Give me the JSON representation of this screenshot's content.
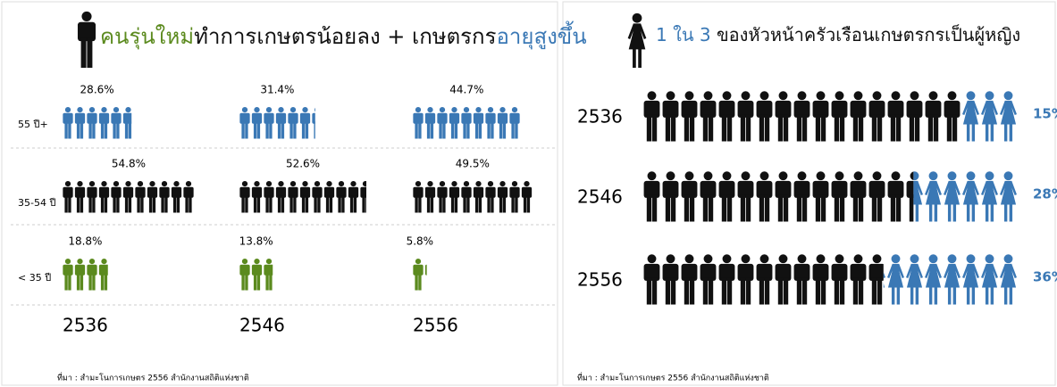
{
  "chart_data": [
    {
      "type": "pictogram",
      "title_parts": [
        {
          "text": "คนรุ่นใหม่",
          "color": "#5b8a1e"
        },
        {
          "text": "ทำการเกษตรน้อยลง + เกษตรกร",
          "color": "#111111"
        },
        {
          "text": "อายุสูงขึ้น",
          "color": "#3a78b5"
        }
      ],
      "categories": [
        "2536",
        "2546",
        "2556"
      ],
      "series": [
        {
          "name": "55 ปี+",
          "color": "#3a78b5",
          "values": [
            28.6,
            31.4,
            44.7
          ],
          "value_labels": [
            "28.6%",
            "31.4%",
            "44.7%"
          ]
        },
        {
          "name": "35-54 ปี",
          "color": "#111111",
          "values": [
            54.8,
            52.6,
            49.5
          ],
          "value_labels": [
            "54.8%",
            "52.6%",
            "49.5%"
          ]
        },
        {
          "name": "< 35 ปี",
          "color": "#5b8a1e",
          "values": [
            18.8,
            13.8,
            5.8
          ],
          "value_labels": [
            "18.8%",
            "13.8%",
            "5.8%"
          ]
        }
      ],
      "source": "ที่มา : สำมะโนการเกษตร 2556  สำนักงานสถิติแห่งชาติ"
    },
    {
      "type": "pictogram",
      "title_parts": [
        {
          "text": "1 ใน 3",
          "color": "#3a78b5"
        },
        {
          "text": " ของหัวหน้าครัวเรือนเกษตรกรเป็นผู้หญิง",
          "color": "#111111"
        }
      ],
      "categories": [
        "2536",
        "2546",
        "2556"
      ],
      "series": [
        {
          "color": "#3a78b5",
          "values": [
            15,
            28,
            36
          ],
          "value_labels": [
            "15%",
            "28%",
            "36%"
          ]
        }
      ],
      "other_color": "#111111",
      "source": "ที่มา : สำมะโนการเกษตร 2556  สำนักงานสถิติแห่งชาติ"
    }
  ]
}
